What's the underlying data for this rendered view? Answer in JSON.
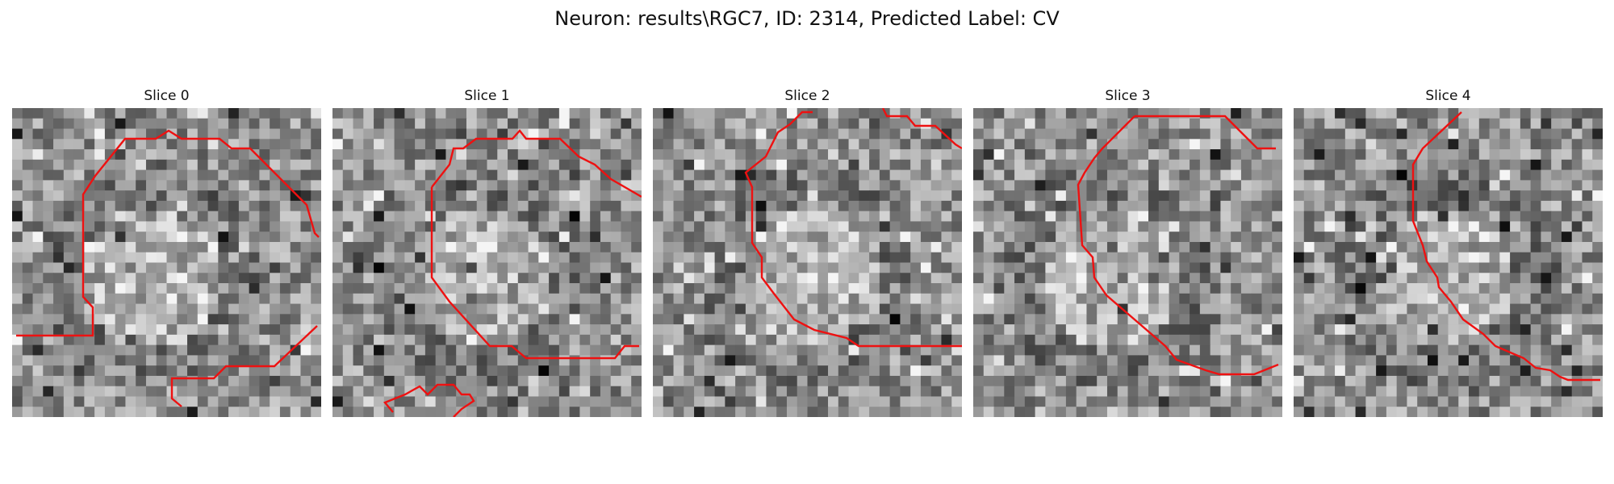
{
  "title": "Neuron: results\\RGC7, ID: 2314, Predicted Label: CV",
  "contour_color": "#ee1111",
  "panels": [
    {
      "label": "Slice 0",
      "seed": 11
    },
    {
      "label": "Slice 1",
      "seed": 23
    },
    {
      "label": "Slice 2",
      "seed": 37
    },
    {
      "label": "Slice 3",
      "seed": 41
    },
    {
      "label": "Slice 4",
      "seed": 59
    }
  ]
}
